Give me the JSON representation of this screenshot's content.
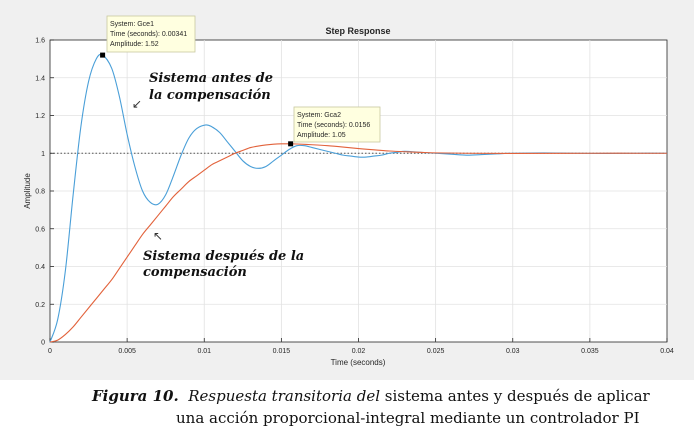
{
  "chart_data": {
    "type": "line",
    "title": "Step Response",
    "xlabel": "Time (seconds)",
    "ylabel": "Amplitude",
    "xlim": [
      0,
      0.04
    ],
    "ylim": [
      0,
      1.6
    ],
    "grid": true,
    "xticks": [
      0,
      0.005,
      0.01,
      0.015,
      0.02,
      0.025,
      0.03,
      0.035,
      0.04
    ],
    "xtick_labels": [
      "0",
      "0.005",
      "0.01",
      "0.015",
      "0.02",
      "0.025",
      "0.03",
      "0.035",
      "0.04"
    ],
    "yticks": [
      0,
      0.2,
      0.4,
      0.6,
      0.8,
      1,
      1.2,
      1.4,
      1.6
    ],
    "ytick_labels": [
      "0",
      "0.2",
      "0.4",
      "0.6",
      "0.8",
      "1",
      "1.2",
      "1.4",
      "1.6"
    ],
    "reference_line": {
      "y": 1,
      "style": "dotted"
    },
    "series": [
      {
        "name": "Gce1",
        "color": "#4a9fd8",
        "x": [
          0,
          0.0005,
          0.001,
          0.0015,
          0.002,
          0.0025,
          0.003,
          0.00341,
          0.004,
          0.0045,
          0.005,
          0.0055,
          0.006,
          0.0065,
          0.007,
          0.0075,
          0.008,
          0.0085,
          0.009,
          0.0095,
          0.0101,
          0.0105,
          0.011,
          0.0115,
          0.012,
          0.0125,
          0.013,
          0.0135,
          0.014,
          0.0145,
          0.015,
          0.0155,
          0.016,
          0.0165,
          0.017,
          0.0175,
          0.018,
          0.0185,
          0.019,
          0.0195,
          0.02,
          0.0205,
          0.021,
          0.0215,
          0.022,
          0.0225,
          0.023,
          0.024,
          0.025,
          0.026,
          0.027,
          0.028,
          0.029,
          0.03,
          0.032,
          0.034,
          0.036,
          0.038,
          0.04
        ],
        "y": [
          0,
          0.12,
          0.38,
          0.78,
          1.14,
          1.38,
          1.5,
          1.52,
          1.45,
          1.3,
          1.1,
          0.93,
          0.8,
          0.74,
          0.73,
          0.78,
          0.88,
          0.99,
          1.08,
          1.13,
          1.15,
          1.14,
          1.11,
          1.06,
          1.01,
          0.96,
          0.93,
          0.92,
          0.93,
          0.96,
          0.99,
          1.02,
          1.04,
          1.04,
          1.03,
          1.02,
          1.01,
          1.0,
          0.99,
          0.985,
          0.98,
          0.98,
          0.985,
          0.99,
          1.0,
          1.005,
          1.01,
          1.005,
          1.0,
          0.995,
          0.99,
          0.993,
          0.997,
          1.0,
          1.002,
          1.0,
          0.999,
          1.0,
          1.0
        ]
      },
      {
        "name": "Gca2",
        "color": "#e2623b",
        "x": [
          0,
          0.0005,
          0.001,
          0.0015,
          0.002,
          0.0025,
          0.003,
          0.0035,
          0.004,
          0.0045,
          0.005,
          0.0055,
          0.006,
          0.0065,
          0.007,
          0.0075,
          0.008,
          0.0085,
          0.009,
          0.0095,
          0.01,
          0.0105,
          0.011,
          0.0115,
          0.012,
          0.0125,
          0.013,
          0.0135,
          0.014,
          0.0145,
          0.015,
          0.0156,
          0.016,
          0.017,
          0.018,
          0.019,
          0.02,
          0.021,
          0.022,
          0.023,
          0.024,
          0.025,
          0.027,
          0.03,
          0.035,
          0.04
        ],
        "y": [
          0,
          0.01,
          0.04,
          0.08,
          0.13,
          0.18,
          0.23,
          0.28,
          0.33,
          0.39,
          0.45,
          0.51,
          0.57,
          0.62,
          0.67,
          0.72,
          0.77,
          0.81,
          0.85,
          0.88,
          0.91,
          0.94,
          0.96,
          0.98,
          1.0,
          1.015,
          1.03,
          1.038,
          1.044,
          1.048,
          1.05,
          1.05,
          1.049,
          1.045,
          1.04,
          1.033,
          1.025,
          1.018,
          1.012,
          1.008,
          1.005,
          1.002,
          1.0,
          0.999,
          1.0,
          1.0
        ]
      }
    ],
    "datatips": [
      {
        "series_index": 0,
        "x": 0.00341,
        "y": 1.52,
        "line1": "System: Gce1",
        "line2": "Time (seconds): 0.00341",
        "line3": "Amplitude: 1.52"
      },
      {
        "series_index": 1,
        "x": 0.0156,
        "y": 1.05,
        "line1": "System: Gca2",
        "line2": "Time (seconds): 0.0156",
        "line3": "Amplitude: 1.05"
      }
    ],
    "annotations": [
      {
        "line1": "Sistema antes de",
        "line2": "la compensación",
        "arrow_symbol": "↙"
      },
      {
        "line1": "Sistema después de la",
        "line2": "compensación",
        "arrow_symbol": "↖"
      }
    ]
  },
  "caption": {
    "label": "Figura 10.",
    "italic_part": "Respuesta transitoria del",
    "rest_line1": " sistema antes y después de aplicar",
    "line2": "una acción proporcional-integral mediante un controlador PI"
  }
}
